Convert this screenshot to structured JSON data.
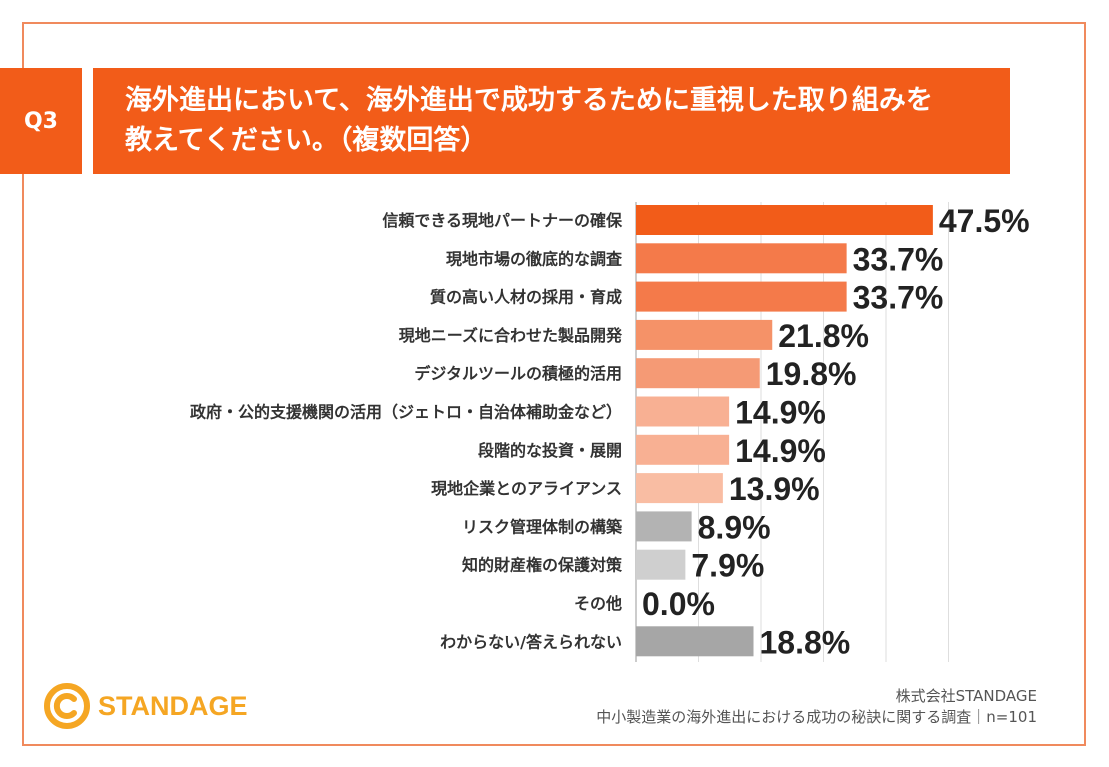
{
  "question": {
    "number": "Q3",
    "line1": "海外進出において、海外進出で成功するために重視した取り組みを",
    "line2": "教えてください。（複数回答）"
  },
  "chart_data": {
    "type": "bar",
    "orientation": "horizontal",
    "title": "海外進出において、海外進出で成功するために重視した取り組みを教えてください。（複数回答）",
    "unit": "%",
    "xlim": [
      0,
      50
    ],
    "grid": true,
    "categories": [
      "信頼できる現地パートナーの確保",
      "現地市場の徹底的な調査",
      "質の高い人材の採用・育成",
      "現地ニーズに合わせた製品開発",
      "デジタルツールの積極的活用",
      "政府・公的支援機関の活用（ジェトロ・自治体補助金など）",
      "段階的な投資・展開",
      "現地企業とのアライアンス",
      "リスク管理体制の構築",
      "知的財産権の保護対策",
      "その他",
      "わからない/答えられない"
    ],
    "values": [
      47.5,
      33.7,
      33.7,
      21.8,
      19.8,
      14.9,
      14.9,
      13.9,
      8.9,
      7.9,
      0.0,
      18.8
    ],
    "value_labels": [
      "47.5%",
      "33.7%",
      "33.7%",
      "21.8%",
      "19.8%",
      "14.9%",
      "14.9%",
      "13.9%",
      "8.9%",
      "7.9%",
      "0.0%",
      "18.8%"
    ],
    "colors": [
      "#f25c19",
      "#f47a4a",
      "#f47a4a",
      "#f59268",
      "#f59a75",
      "#f8b093",
      "#f8b093",
      "#f9bda3",
      "#b3b3b3",
      "#cfcfcf",
      "#cfcfcf",
      "#a6a6a6"
    ]
  },
  "footer": {
    "company": "株式会社STANDAGE",
    "survey": "中小製造業の海外進出における成功の秘訣に関する調査｜n=101"
  },
  "logo": {
    "text": "STANDAGE",
    "color": "#f5a623"
  }
}
